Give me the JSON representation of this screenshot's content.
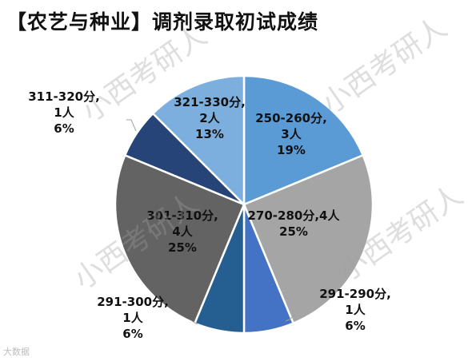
{
  "title": "【农艺与种业】调剂录取初试成绩",
  "watermark": "小西考研人",
  "corner_text": "大数据",
  "chart_data": {
    "type": "pie",
    "title": "【农艺与种业】调剂录取初试成绩",
    "unit": "人",
    "slices": [
      {
        "label": "250-260分",
        "count": "3人",
        "percent": "19%",
        "value": 3,
        "color": "#5b9bd5",
        "text_color": "#111111"
      },
      {
        "label": "270-280分",
        "count": "4人",
        "percent": "25%",
        "value": 4,
        "color": "#a5a5a5",
        "text_color": "#111111"
      },
      {
        "label": "291-290分",
        "count": "1人",
        "percent": "6%",
        "value": 1,
        "color": "#4472c4",
        "text_color": "#111111"
      },
      {
        "label": "291-300分",
        "count": "1人",
        "percent": "6%",
        "value": 1,
        "color": "#255e91",
        "text_color": "#111111"
      },
      {
        "label": "301-310分",
        "count": "4人",
        "percent": "25%",
        "value": 4,
        "color": "#636363",
        "text_color": "#111111"
      },
      {
        "label": "311-320分",
        "count": "1人",
        "percent": "6%",
        "value": 1,
        "color": "#264478",
        "text_color": "#111111"
      },
      {
        "label": "321-330分",
        "count": "2人",
        "percent": "13%",
        "value": 2,
        "color": "#7cafdd",
        "text_color": "#111111"
      }
    ]
  }
}
